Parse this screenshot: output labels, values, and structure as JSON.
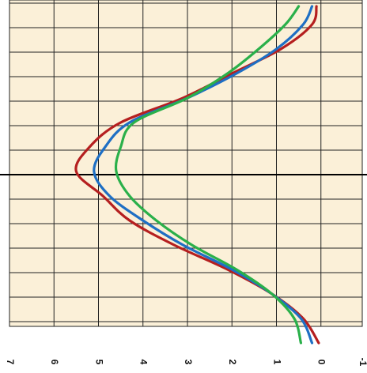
{
  "chart_data": {
    "type": "line",
    "orientation": "rotated-90-counterclockwise",
    "value_axis": {
      "ticks": [
        -1,
        0,
        1,
        2,
        3,
        4,
        5,
        6,
        7
      ],
      "tick_labels": [
        "-1",
        "0",
        "1",
        "2",
        "3",
        "4",
        "5",
        "6",
        "7"
      ],
      "range": [
        -1,
        7
      ]
    },
    "horizontal_axis_at_row": 7,
    "grid": true,
    "background_color": "#fbf0d8",
    "grid_color": "#222222",
    "series": [
      {
        "color": "#b51f1f",
        "points": [
          [
            0,
            0.1
          ],
          [
            1,
            0.2
          ],
          [
            2,
            0.9
          ],
          [
            3,
            2.0
          ],
          [
            4,
            3.1
          ],
          [
            5,
            4.5
          ],
          [
            6,
            5.2
          ],
          [
            7,
            5.5
          ],
          [
            8,
            4.9
          ],
          [
            9,
            4.3
          ],
          [
            10,
            3.3
          ],
          [
            11,
            2.1
          ],
          [
            12,
            1.1
          ],
          [
            13,
            0.4
          ],
          [
            14,
            0.05
          ]
        ]
      },
      {
        "color": "#1e6fc4",
        "points": [
          [
            0,
            0.2
          ],
          [
            1,
            0.4
          ],
          [
            2,
            1.0
          ],
          [
            3,
            1.9
          ],
          [
            4,
            3.0
          ],
          [
            5,
            4.3
          ],
          [
            6,
            4.85
          ],
          [
            7,
            5.1
          ],
          [
            8,
            4.75
          ],
          [
            9,
            4.0
          ],
          [
            10,
            3.1
          ],
          [
            11,
            2.0
          ],
          [
            12,
            1.1
          ],
          [
            13,
            0.45
          ],
          [
            14,
            0.2
          ]
        ]
      },
      {
        "color": "#2ab04a",
        "points": [
          [
            0,
            0.5
          ],
          [
            1,
            0.8
          ],
          [
            2,
            1.4
          ],
          [
            3,
            2.1
          ],
          [
            4,
            3.0
          ],
          [
            5,
            4.2
          ],
          [
            6,
            4.5
          ],
          [
            7,
            4.6
          ],
          [
            8,
            4.3
          ],
          [
            9,
            3.7
          ],
          [
            10,
            2.9
          ],
          [
            11,
            1.9
          ],
          [
            12,
            1.1
          ],
          [
            13,
            0.6
          ],
          [
            14,
            0.45
          ]
        ]
      }
    ]
  }
}
